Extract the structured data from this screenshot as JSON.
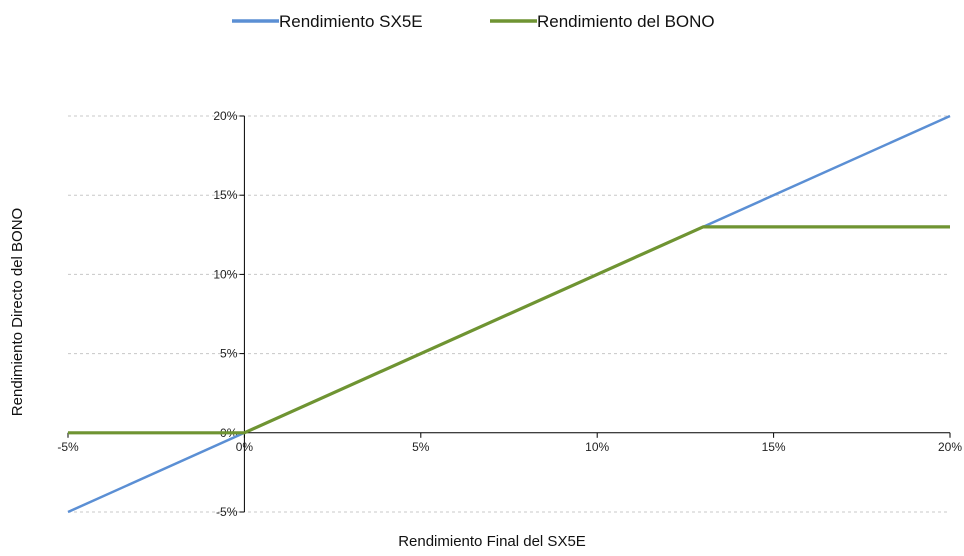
{
  "chart_data": {
    "type": "line",
    "title": "",
    "xlabel": "Rendimiento Final del SX5E",
    "ylabel": "Rendimiento Directo del BONO",
    "xlim": [
      -5,
      20
    ],
    "ylim": [
      -5,
      20
    ],
    "x_ticks": [
      -5,
      0,
      5,
      10,
      15,
      20
    ],
    "y_ticks": [
      -5,
      0,
      5,
      10,
      15,
      20
    ],
    "x_tick_labels": [
      "-5%",
      "0%",
      "5%",
      "10%",
      "15%",
      "20%"
    ],
    "y_tick_labels": [
      "-5%",
      "0%",
      "5%",
      "10%",
      "15%",
      "20%"
    ],
    "grid": "horizontal dashed",
    "legend_position": "top",
    "series": [
      {
        "name": "Rendimiento SX5E",
        "color": "#5b8fd4",
        "points": [
          [
            -5,
            -5
          ],
          [
            20,
            20
          ]
        ]
      },
      {
        "name": "Rendimiento del BONO",
        "color": "#6f9432",
        "points": [
          [
            -5,
            0
          ],
          [
            0,
            0
          ],
          [
            13,
            13
          ],
          [
            20,
            13
          ]
        ]
      }
    ]
  }
}
